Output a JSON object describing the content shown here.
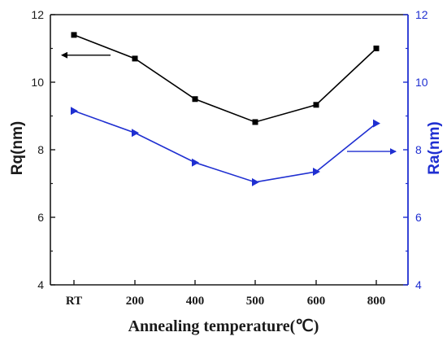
{
  "chart_data": {
    "type": "line",
    "categories": [
      "RT",
      "200",
      "400",
      "500",
      "600",
      "800"
    ],
    "xlabel": "Annealing temperature(℃)",
    "y_left": {
      "label": "Rq(nm)",
      "ylim": [
        4,
        12
      ],
      "ticks": [
        "4",
        "6",
        "8",
        "10",
        "12"
      ],
      "color": "#1a1a1a"
    },
    "y_right": {
      "label": "Ra(nm)",
      "ylim": [
        4,
        12
      ],
      "ticks": [
        "4",
        "6",
        "8",
        "10",
        "12"
      ],
      "color": "#1f2fd1"
    },
    "series": [
      {
        "axis": "left",
        "marker": "square",
        "color": "#000000",
        "values": [
          11.4,
          10.7,
          9.5,
          8.82,
          9.33,
          11.0
        ]
      },
      {
        "axis": "right",
        "marker": "triangle-right",
        "color": "#1f2fd1",
        "values": [
          9.15,
          8.5,
          7.62,
          7.04,
          7.35,
          8.78
        ]
      }
    ],
    "annotations": [
      {
        "type": "arrow",
        "direction": "left",
        "points_to": "left axis",
        "color": "#000000"
      },
      {
        "type": "arrow",
        "direction": "right",
        "points_to": "right axis",
        "color": "#1f2fd1"
      }
    ],
    "grid": false,
    "legend": "none"
  }
}
